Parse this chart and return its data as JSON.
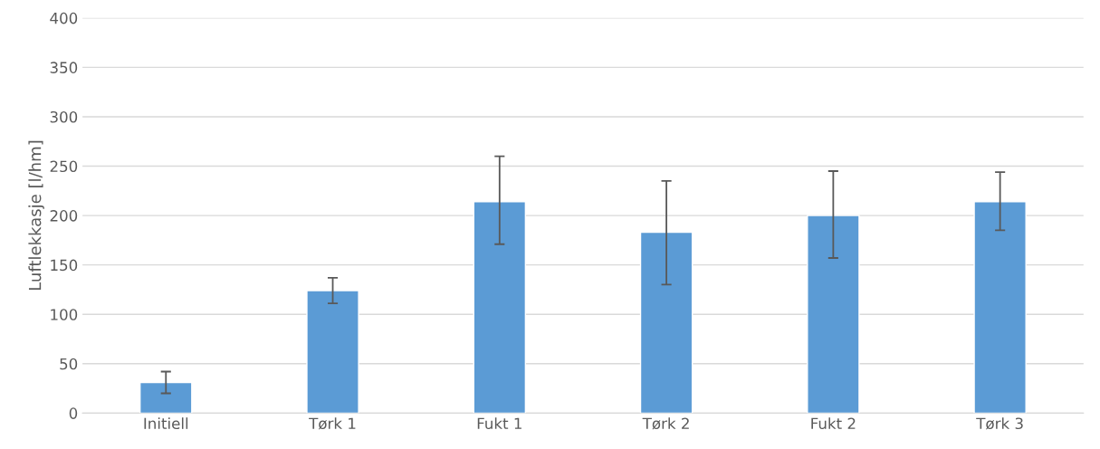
{
  "chart_data": {
    "type": "bar",
    "ylabel": "Luftlekkasje [l/hm]",
    "categories": [
      "Initiell",
      "Tørk 1",
      "Fukt 1",
      "Tørk 2",
      "Fukt 2",
      "Tørk 3"
    ],
    "values": [
      31,
      124,
      214,
      183,
      200,
      214
    ],
    "errors": [
      [
        20,
        42
      ],
      [
        111,
        137
      ],
      [
        171,
        260
      ],
      [
        130,
        235
      ],
      [
        157,
        245
      ],
      [
        185,
        244
      ]
    ],
    "color": "#5b9bd5",
    "ylim": [
      0,
      400
    ],
    "yticks": [
      0,
      50,
      100,
      150,
      200,
      250,
      300,
      350,
      400
    ],
    "grid": "y"
  }
}
